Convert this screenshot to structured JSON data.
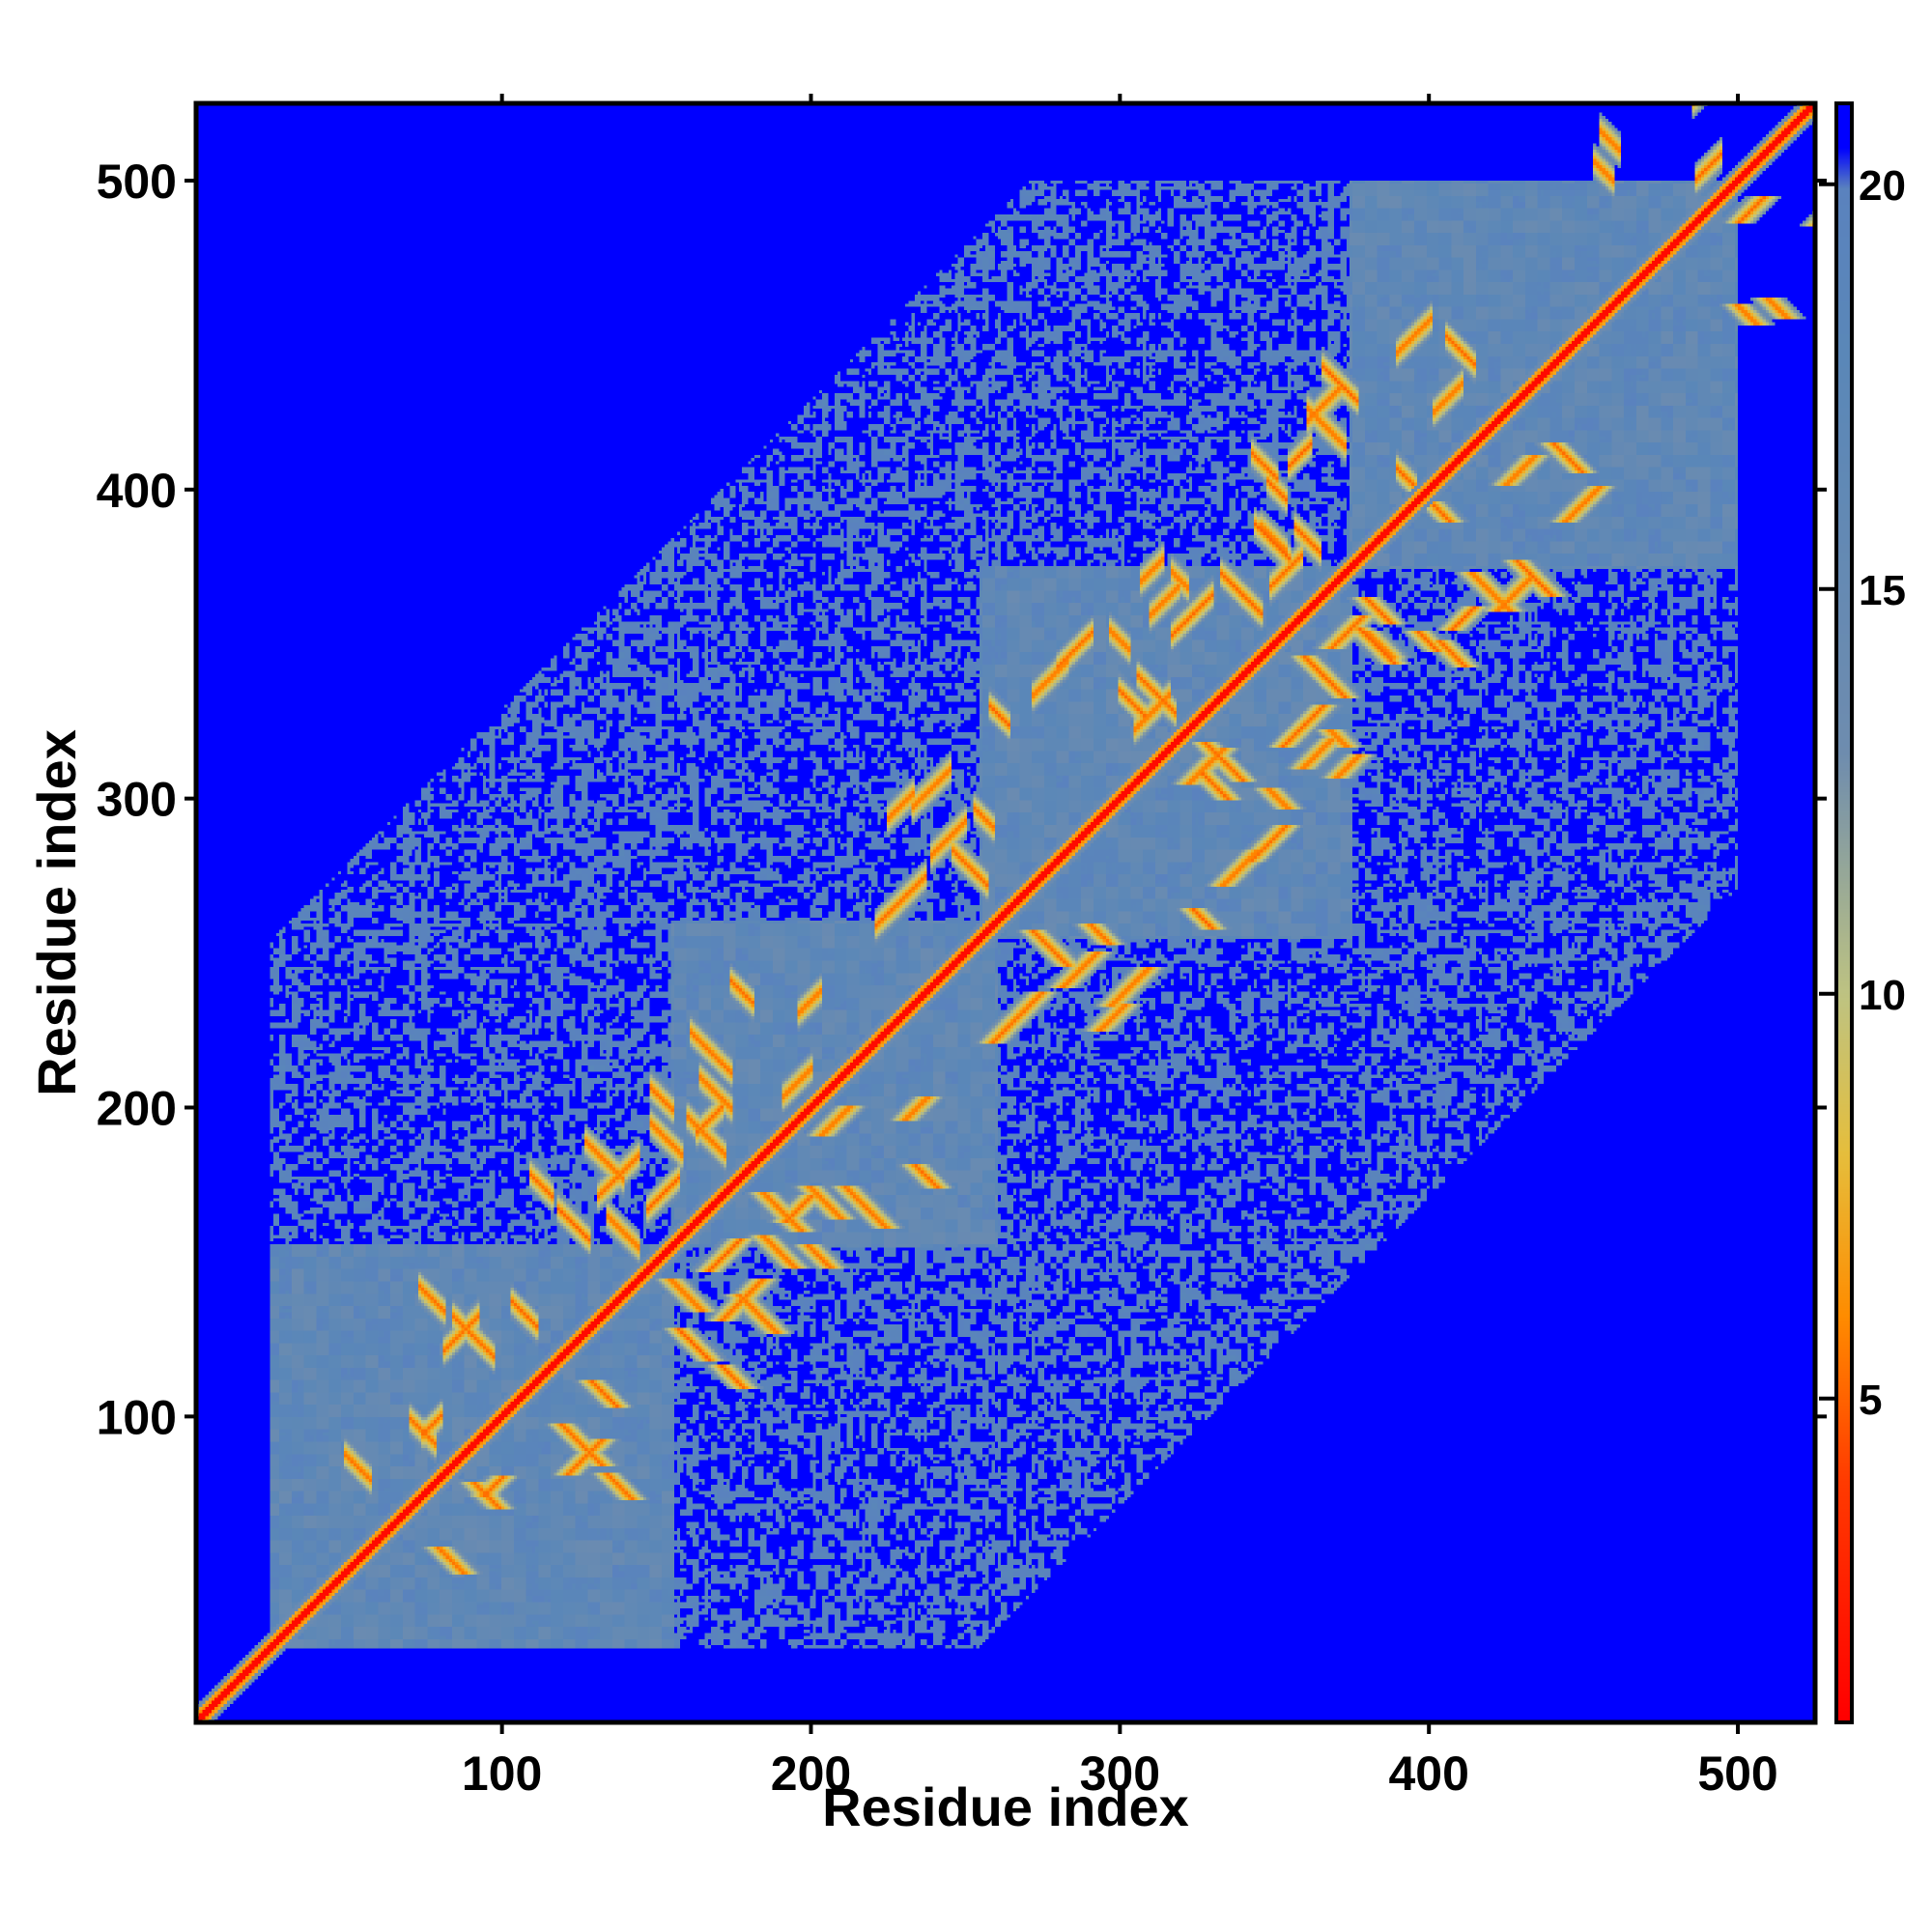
{
  "chart_data": {
    "type": "heatmap",
    "title": "",
    "xlabel": "Residue index",
    "ylabel": "Residue index",
    "xlim": [
      1,
      525
    ],
    "ylim": [
      1,
      525
    ],
    "n_residues": 525,
    "x_ticks": [
      100,
      200,
      300,
      400,
      500
    ],
    "y_ticks": [
      100,
      200,
      300,
      400,
      500
    ],
    "tick_labels": [
      "100",
      "200",
      "300",
      "400",
      "500"
    ],
    "colorbar": {
      "range": [
        1,
        21
      ],
      "ticks": [
        5,
        10,
        15,
        20
      ],
      "tick_labels": [
        "5",
        "10",
        "15",
        "20"
      ],
      "colors": {
        "near": "#ff0000",
        "mid_low": "#ff8800",
        "mid": "#c8c87a",
        "high": "#5a87b8",
        "max": "#0000ff"
      }
    },
    "domains": [
      {
        "start": 25,
        "end": 155
      },
      {
        "start": 155,
        "end": 260
      },
      {
        "start": 255,
        "end": 375
      },
      {
        "start": 375,
        "end": 500
      }
    ],
    "grid": false,
    "legend": "right (colorbar)"
  }
}
